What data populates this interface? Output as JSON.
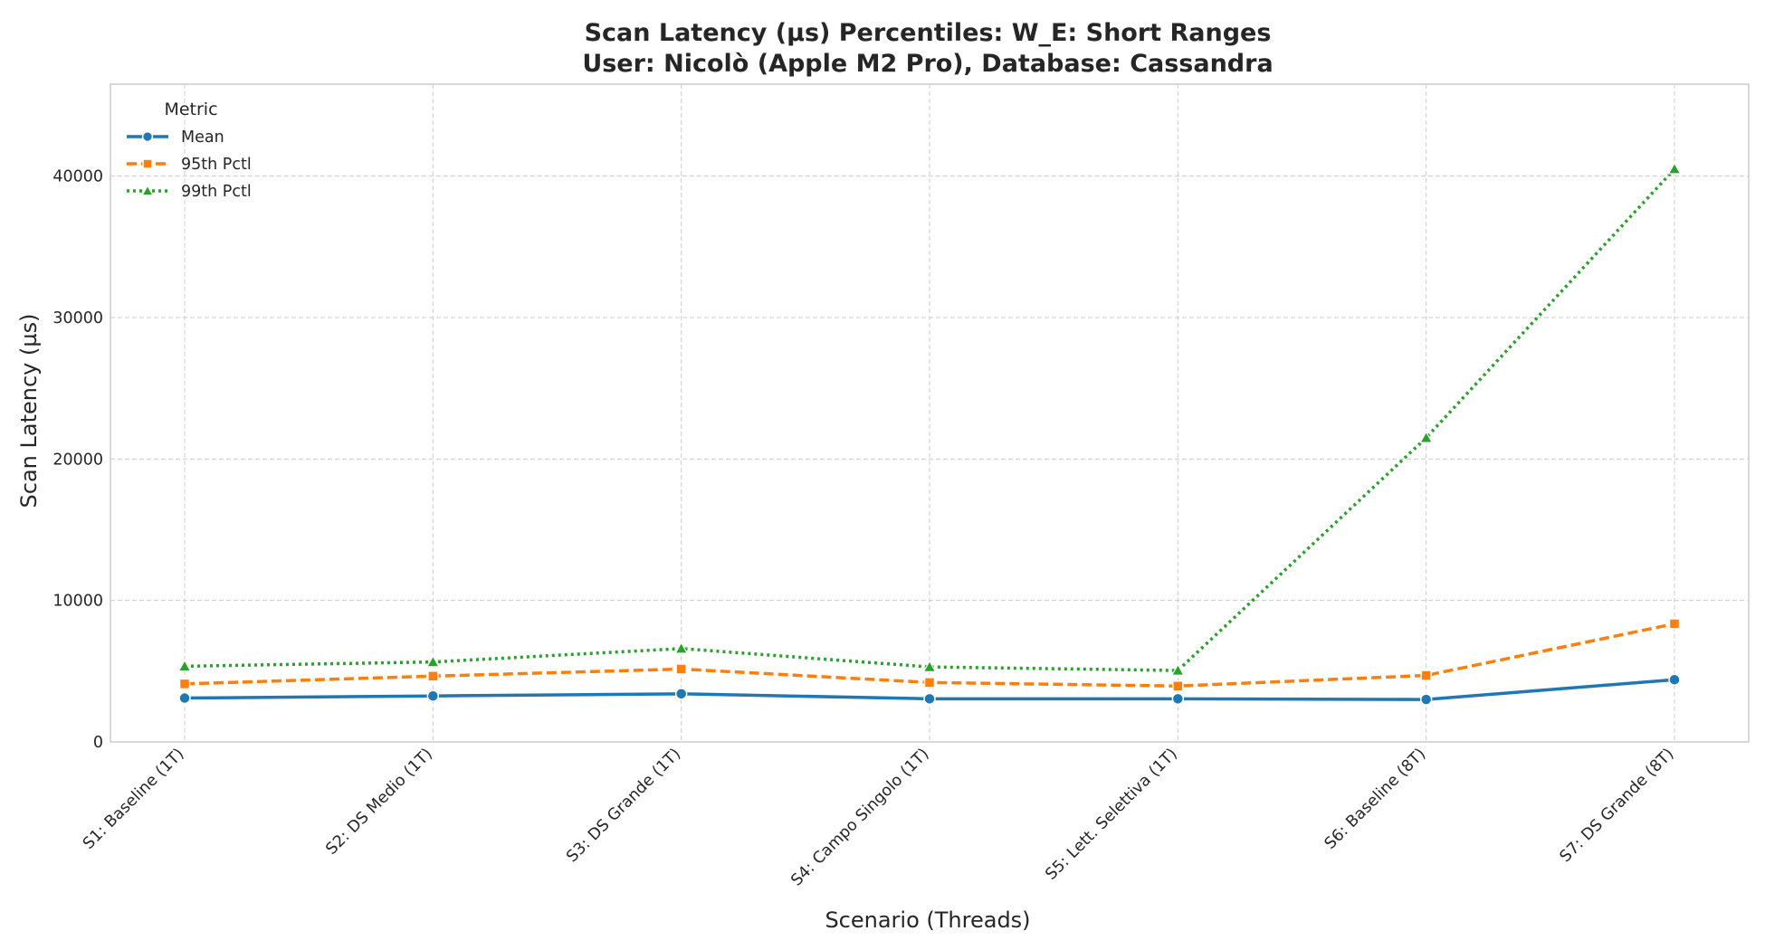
{
  "chart_data": {
    "type": "line",
    "title": "Scan Latency (µs) Percentiles: W_E: Short Ranges",
    "subtitle": "User: Nicolò (Apple M2 Pro), Database: Cassandra",
    "xlabel": "Scenario (Threads)",
    "ylabel": "Scan Latency (µs)",
    "ylim": [
      0,
      46500
    ],
    "yticks": [
      0,
      10000,
      20000,
      30000,
      40000
    ],
    "ytick_labels": [
      "0",
      "10000",
      "20000",
      "30000",
      "40000"
    ],
    "grid": true,
    "legend": {
      "title": "Metric",
      "placement": "top-left"
    },
    "categories": [
      "S1: Baseline (1T)",
      "S2: DS Medio (1T)",
      "S3: DS Grande (1T)",
      "S4: Campo Singolo (1T)",
      "S5: Lett. Selettiva (1T)",
      "S6: Baseline (8T)",
      "S7: DS Grande (8T)"
    ],
    "series": [
      {
        "name": "Mean",
        "color": "#1f77b4",
        "marker": "circle",
        "dash": "solid",
        "values": [
          3100,
          3250,
          3400,
          3050,
          3050,
          3000,
          4400
        ]
      },
      {
        "name": "95th Pctl",
        "color": "#ff7f0e",
        "marker": "square",
        "dash": "dashed",
        "values": [
          4100,
          4650,
          5150,
          4200,
          3950,
          4700,
          8350
        ]
      },
      {
        "name": "99th Pctl",
        "color": "#2ca02c",
        "marker": "triangle",
        "dash": "dotted",
        "values": [
          5350,
          5650,
          6600,
          5300,
          5050,
          21500,
          40500
        ]
      }
    ]
  }
}
